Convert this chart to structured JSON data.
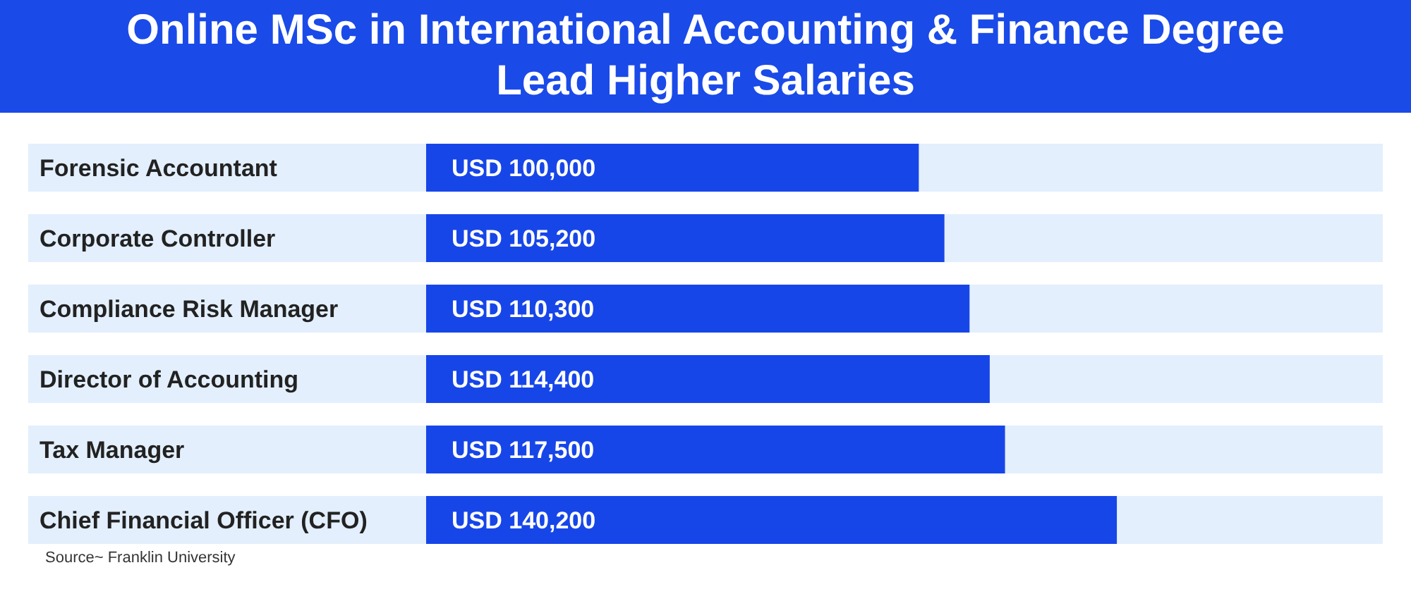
{
  "chart_data": {
    "type": "bar",
    "orientation": "horizontal",
    "title": "Online MSc in International Accounting & Finance Degree Lead Higher Salaries",
    "categories": [
      "Forensic Accountant",
      "Corporate Controller",
      "Compliance Risk Manager",
      "Director of Accounting",
      "Tax Manager",
      "Chief Financial Officer (CFO)"
    ],
    "values": [
      100000,
      105200,
      110300,
      114400,
      117500,
      140200
    ],
    "value_labels": [
      "USD 100,000",
      "USD 105,200",
      "USD 110,300",
      "USD 114,400",
      "USD 117,500",
      "USD 140,200"
    ],
    "color": "#1746e8",
    "annotations": [
      "Source~ Franklin University"
    ]
  }
}
